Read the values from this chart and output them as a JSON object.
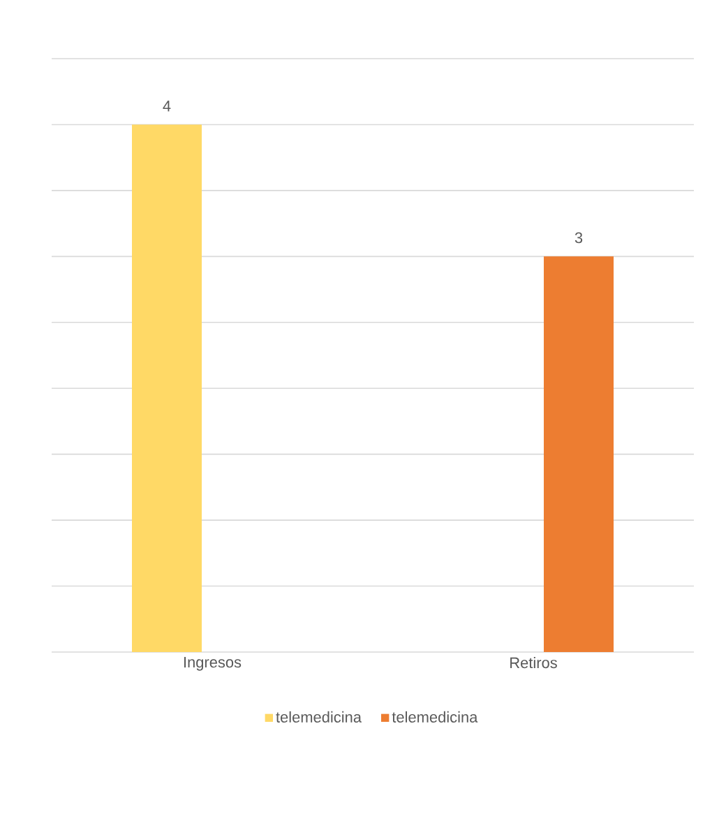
{
  "chart_data": {
    "type": "bar",
    "categories": [
      "Ingresos",
      "Retiros"
    ],
    "series": [
      {
        "name": "telemedicina",
        "color": "#ffd966",
        "values": [
          4,
          null
        ]
      },
      {
        "name": "telemedicina",
        "color": "#ed7d31",
        "values": [
          null,
          3
        ]
      }
    ],
    "tick_labels": "x",
    "grid": "y",
    "data_labels": true,
    "legend": "bottom"
  }
}
